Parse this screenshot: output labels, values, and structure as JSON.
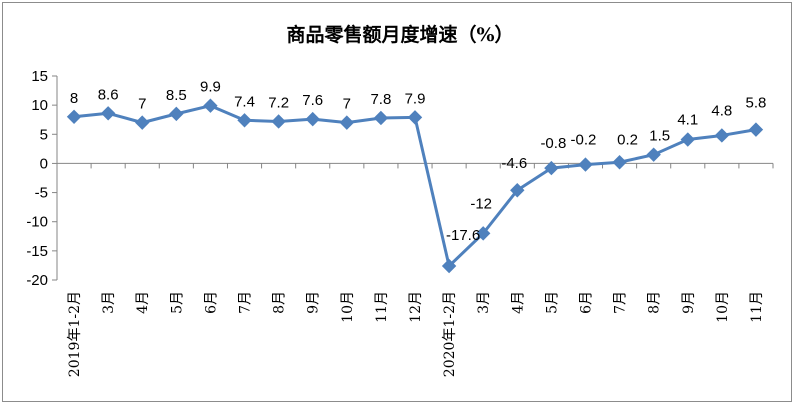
{
  "chart_data": {
    "type": "line",
    "title": "商品零售额月度增速（%）",
    "categories": [
      "2019年1-2月",
      "3月",
      "4月",
      "5月",
      "6月",
      "7月",
      "8月",
      "9月",
      "10月",
      "11月",
      "12月",
      "2020年1-2月",
      "3月",
      "4月",
      "5月",
      "6月",
      "7月",
      "8月",
      "9月",
      "10月",
      "11月"
    ],
    "values": [
      8,
      8.6,
      7,
      8.5,
      9.9,
      7.4,
      7.2,
      7.6,
      7,
      7.8,
      7.9,
      -17.6,
      -12,
      -4.6,
      -0.8,
      -0.2,
      0.2,
      1.5,
      4.1,
      4.8,
      5.8
    ],
    "data_labels": [
      "8",
      "8.6",
      "7",
      "8.5",
      "9.9",
      "7.4",
      "7.2",
      "7.6",
      "7",
      "7.8",
      "7.9",
      "-17.6",
      "-12",
      "-4.6",
      "-0.8",
      "-0.2",
      "0.2",
      "1.5",
      "4.1",
      "4.8",
      "5.8"
    ],
    "xlabel": "",
    "ylabel": "",
    "ylim": [
      -20,
      15
    ],
    "y_ticks": [
      "15",
      "10",
      "5",
      "0",
      "-5",
      "-10",
      "-15",
      "-20"
    ],
    "grid": false,
    "legend": "none",
    "series_color": "#4f81bd",
    "marker": "diamond"
  }
}
